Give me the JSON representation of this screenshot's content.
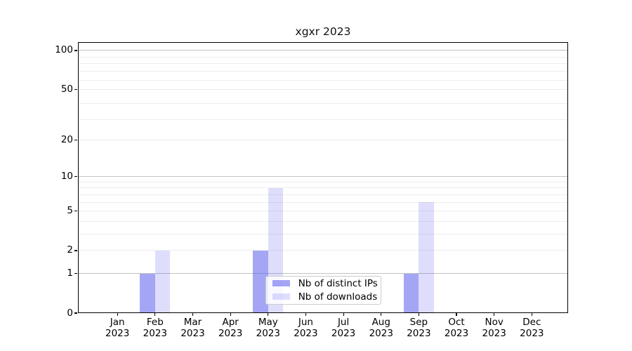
{
  "title": "xgxr 2023",
  "chart_data": {
    "type": "bar",
    "title": "xgxr 2023",
    "categories": [
      "Jan",
      "Feb",
      "Mar",
      "Apr",
      "May",
      "Jun",
      "Jul",
      "Aug",
      "Sep",
      "Oct",
      "Nov",
      "Dec"
    ],
    "category_year_line": "2023",
    "series": [
      {
        "name": "Nb of distinct IPs",
        "values": [
          0,
          1,
          0,
          0,
          2,
          0,
          0,
          0,
          1,
          0,
          0,
          0
        ],
        "color": "rgba(82,82,238,0.52)"
      },
      {
        "name": "Nb of downloads",
        "values": [
          0,
          2,
          0,
          0,
          8,
          0,
          0,
          0,
          6,
          0,
          0,
          0
        ],
        "color": "rgba(82,82,238,0.19)"
      }
    ],
    "xlabel": "",
    "ylabel": "",
    "yscale": "log10(1+x)",
    "ylim": [
      0,
      116
    ],
    "ytick_values": [
      0,
      1,
      2,
      5,
      10,
      20,
      50,
      100
    ],
    "grid": "horizontal",
    "grid_major_values": [
      1,
      10,
      100
    ],
    "grid_minor_values": [
      2,
      3,
      4,
      5,
      6,
      7,
      8,
      9,
      20,
      29,
      39,
      50,
      59,
      69,
      79,
      89
    ],
    "legend_position": "inside-bottom-center"
  },
  "colors": {
    "grid_major": "#c2c2c2",
    "grid_minor": "#ededed",
    "axis": "#000000",
    "text": "#000000",
    "legend_border": "#cccccc",
    "bar_dark": "rgba(82,82,238,0.52)",
    "bar_light": "rgba(82,82,238,0.19)"
  }
}
